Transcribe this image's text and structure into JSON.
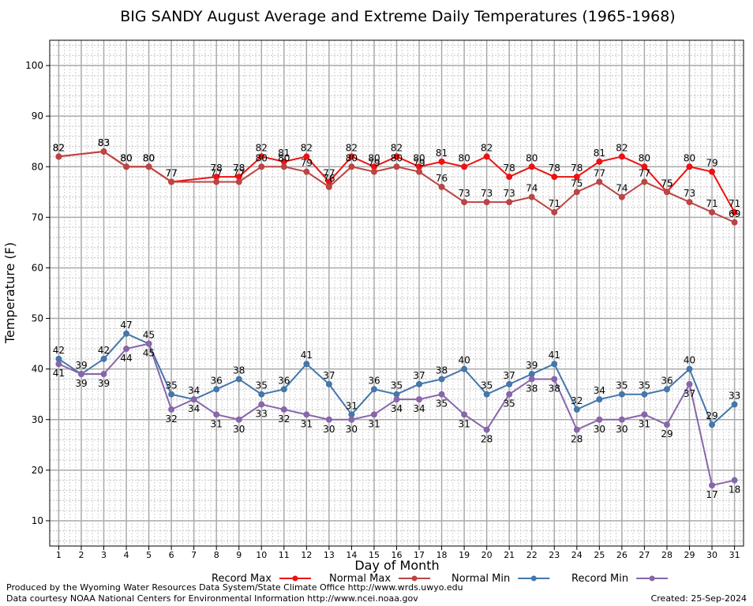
{
  "chart_data": {
    "type": "line",
    "title": "BIG SANDY August Average and Extreme Daily Temperatures (1965-1968)",
    "xlabel": "Day of Month",
    "ylabel": "Temperature (F)",
    "ylim": [
      5,
      105
    ],
    "yticks": [
      10,
      20,
      30,
      40,
      50,
      60,
      70,
      80,
      90,
      100
    ],
    "xlim": [
      0.6,
      31.4
    ],
    "categories": [
      "1",
      "2",
      "3",
      "4",
      "5",
      "6",
      "7",
      "8",
      "9",
      "10",
      "11",
      "12",
      "13",
      "14",
      "15",
      "16",
      "17",
      "18",
      "19",
      "20",
      "21",
      "22",
      "23",
      "24",
      "25",
      "26",
      "27",
      "28",
      "29",
      "30",
      "31"
    ],
    "grid": true,
    "legend_position": "bottom",
    "series": [
      {
        "name": "Record Max",
        "color": "#ee1111",
        "label_pos": "above",
        "x": [
          1,
          3,
          4,
          5,
          6,
          8,
          9,
          10,
          11,
          12,
          13,
          14,
          15,
          16,
          17,
          18,
          19,
          20,
          21,
          22,
          23,
          24,
          25,
          26,
          27,
          28,
          29,
          30,
          31
        ],
        "values": [
          82,
          83,
          80,
          80,
          77,
          78,
          78,
          82,
          81,
          82,
          77,
          82,
          80,
          82,
          80,
          81,
          80,
          82,
          78,
          80,
          78,
          78,
          81,
          82,
          80,
          75,
          80,
          79,
          71
        ]
      },
      {
        "name": "Normal Max",
        "color": "#bb4444",
        "label_pos": "above",
        "x": [
          1,
          3,
          4,
          5,
          6,
          8,
          9,
          10,
          11,
          12,
          13,
          14,
          15,
          16,
          17,
          18,
          19,
          20,
          21,
          22,
          23,
          24,
          25,
          26,
          27,
          28,
          29,
          30,
          31
        ],
        "values": [
          82,
          83,
          80,
          80,
          77,
          77,
          77,
          80,
          80,
          79,
          76,
          80,
          79,
          80,
          79,
          76,
          73,
          73,
          73,
          74,
          71,
          75,
          77,
          74,
          77,
          75,
          73,
          71,
          69
        ]
      },
      {
        "name": "Normal Min",
        "color": "#4477aa",
        "label_pos": "above",
        "x": [
          1,
          2,
          3,
          4,
          5,
          6,
          7,
          8,
          9,
          10,
          11,
          12,
          13,
          14,
          15,
          16,
          17,
          18,
          19,
          20,
          21,
          22,
          23,
          24,
          25,
          26,
          27,
          28,
          29,
          30,
          31
        ],
        "values": [
          42,
          39,
          42,
          47,
          45,
          35,
          34,
          36,
          38,
          35,
          36,
          41,
          37,
          31,
          36,
          35,
          37,
          38,
          40,
          35,
          37,
          39,
          41,
          32,
          34,
          35,
          35,
          36,
          40,
          29,
          33
        ]
      },
      {
        "name": "Record Min",
        "color": "#8866aa",
        "label_pos": "below",
        "x": [
          1,
          2,
          3,
          4,
          5,
          6,
          7,
          8,
          9,
          10,
          11,
          12,
          13,
          14,
          15,
          16,
          17,
          18,
          19,
          20,
          21,
          22,
          23,
          24,
          25,
          26,
          27,
          28,
          29,
          30,
          31
        ],
        "values": [
          41,
          39,
          39,
          44,
          45,
          32,
          34,
          31,
          30,
          33,
          32,
          31,
          30,
          30,
          31,
          34,
          34,
          35,
          31,
          28,
          35,
          38,
          38,
          28,
          30,
          30,
          31,
          29,
          37,
          17,
          18
        ]
      }
    ]
  },
  "footer": {
    "produced_by": "Produced by the Wyoming Water Resources Data System/State Climate Office http://www.wrds.uwyo.edu",
    "data_courtesy": "Data courtesy NOAA National Centers for Environmental Information http://www.ncei.noaa.gov",
    "created": "Created:  25-Sep-2024"
  }
}
